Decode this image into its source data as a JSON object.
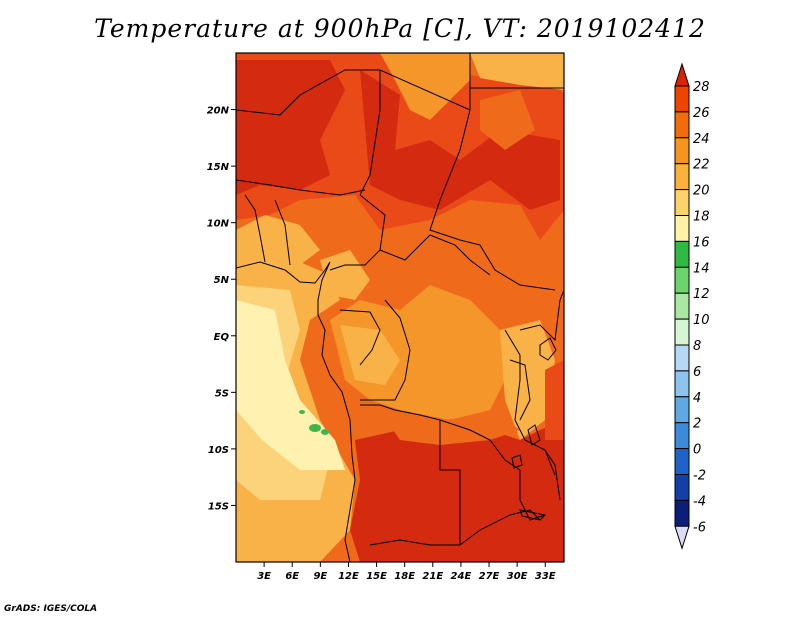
{
  "title": "Temperature at 900hPa [C], VT: 2019102412",
  "footer": "GrADS: IGES/COLA",
  "map": {
    "lat_range": [
      -20,
      25
    ],
    "lon_range": [
      0,
      35
    ],
    "lat_ticks": [
      {
        "value": 20,
        "label": "20N"
      },
      {
        "value": 15,
        "label": "15N"
      },
      {
        "value": 10,
        "label": "10N"
      },
      {
        "value": 5,
        "label": "5N"
      },
      {
        "value": 0,
        "label": "EQ"
      },
      {
        "value": -5,
        "label": "5S"
      },
      {
        "value": -10,
        "label": "10S"
      },
      {
        "value": -15,
        "label": "15S"
      }
    ],
    "lon_ticks": [
      {
        "value": 3,
        "label": "3E"
      },
      {
        "value": 6,
        "label": "6E"
      },
      {
        "value": 9,
        "label": "9E"
      },
      {
        "value": 12,
        "label": "12E"
      },
      {
        "value": 15,
        "label": "15E"
      },
      {
        "value": 18,
        "label": "18E"
      },
      {
        "value": 21,
        "label": "21E"
      },
      {
        "value": 24,
        "label": "24E"
      },
      {
        "value": 27,
        "label": "27E"
      },
      {
        "value": 30,
        "label": "30E"
      },
      {
        "value": 33,
        "label": "33E"
      }
    ]
  },
  "colorbar": {
    "levels": [
      "28",
      "26",
      "24",
      "22",
      "20",
      "18",
      "16",
      "14",
      "12",
      "10",
      "8",
      "6",
      "4",
      "2",
      "0",
      "-2",
      "-4",
      "-6"
    ],
    "colors": [
      "#dd2200",
      "#ee4400",
      "#f26c0a",
      "#f7941d",
      "#fbb13c",
      "#fdd26b",
      "#fff1a6",
      "#2fbb43",
      "#6bd46b",
      "#a9e8a0",
      "#d6f5d2",
      "#b4d8f5",
      "#8cc4ef",
      "#5ea8e6",
      "#3b8adb",
      "#1f63c9",
      "#1240a8",
      "#0b1f7a"
    ]
  },
  "field_colors": {
    "c28": "#d42a10",
    "c26": "#ea4a18",
    "c24": "#f06a1c",
    "c22": "#f5962a",
    "c20": "#f9b248",
    "c18": "#fcd27a",
    "c16": "#fff2b0",
    "green": "#3cb84a"
  }
}
